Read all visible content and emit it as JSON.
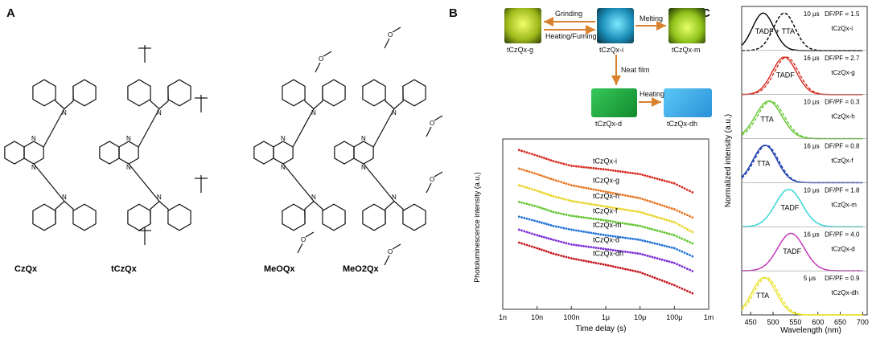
{
  "panels": {
    "a": "A",
    "b": "B",
    "c": "C"
  },
  "molecules": [
    {
      "name": "CzQx"
    },
    {
      "name": "tCzQx"
    },
    {
      "name": "MeOQx"
    },
    {
      "name": "MeO2Qx"
    }
  ],
  "scheme": {
    "samples": {
      "g": "tCzQx-g",
      "i": "tCzQx-i",
      "m": "tCzQx-m",
      "d": "tCzQx-d",
      "dh": "tCzQx-dh"
    },
    "arrows": {
      "grinding": "Grinding",
      "heating_fuming": "Heating/Fuming",
      "melting": "Melting",
      "neat_film": "Neat film",
      "heating": "Heating"
    },
    "colors": {
      "g": "#d8e83a",
      "i": "#2fb8d8",
      "m": "#c9ea3a",
      "d": "#1e9a3a",
      "dh": "#3aaee0",
      "arrow": "#d9822b"
    }
  },
  "chart_data": [
    {
      "type": "scatter",
      "ylabel": "Photoluminescence intensity (a.u.)",
      "xlabel": "Time delay (s)",
      "x_scale": "log",
      "x_ticks": [
        "1n",
        "10n",
        "100n",
        "1μ",
        "10μ",
        "100μ",
        "1m"
      ],
      "x_tick_values": [
        1e-09,
        1e-08,
        1e-07,
        1e-06,
        1e-05,
        0.0001,
        0.001
      ],
      "xlim": [
        1e-09,
        0.001
      ],
      "series": [
        {
          "name": "tCzQx-i",
          "color": "#d62a1e",
          "x": [
            3e-09,
            1e-08,
            3e-08,
            1e-07,
            1e-06,
            1e-05,
            0.0001,
            0.0004
          ],
          "y": [
            9.6,
            9.3,
            9.0,
            8.75,
            8.55,
            8.3,
            7.8,
            7.25
          ]
        },
        {
          "name": "tCzQx-g",
          "color": "#e8731e",
          "x": [
            3e-09,
            1e-08,
            3e-08,
            1e-07,
            1e-06,
            1e-05,
            0.0001,
            0.0004
          ],
          "y": [
            8.6,
            8.3,
            8.0,
            7.7,
            7.35,
            7.0,
            6.4,
            5.9
          ]
        },
        {
          "name": "tCzQx-h",
          "color": "#e8d21e",
          "x": [
            3e-09,
            1e-08,
            3e-08,
            1e-07,
            1e-06,
            1e-05,
            0.0001,
            0.0004
          ],
          "y": [
            7.7,
            7.4,
            7.1,
            6.85,
            6.55,
            6.25,
            5.7,
            5.1
          ]
        },
        {
          "name": "tCzQx-f",
          "color": "#5fc42a",
          "x": [
            3e-09,
            1e-08,
            3e-08,
            1e-07,
            1e-06,
            1e-05,
            0.0001,
            0.0004
          ],
          "y": [
            6.8,
            6.55,
            6.25,
            6.05,
            5.8,
            5.5,
            5.0,
            4.5
          ]
        },
        {
          "name": "tCzQx-m",
          "color": "#1e6fd6",
          "x": [
            3e-09,
            1e-08,
            3e-08,
            1e-07,
            1e-06,
            1e-05,
            0.0001,
            0.0004
          ],
          "y": [
            6.0,
            5.75,
            5.5,
            5.3,
            5.0,
            4.75,
            4.3,
            3.8
          ]
        },
        {
          "name": "tCzQx-d",
          "color": "#7a2ad6",
          "x": [
            3e-09,
            1e-08,
            3e-08,
            1e-07,
            1e-06,
            1e-05,
            0.0001,
            0.0004
          ],
          "y": [
            5.3,
            5.0,
            4.75,
            4.5,
            4.25,
            4.0,
            3.5,
            3.0
          ]
        },
        {
          "name": "tCzQx-dh",
          "color": "#c4161e",
          "x": [
            3e-09,
            1e-08,
            3e-08,
            1e-07,
            1e-06,
            1e-05,
            0.0001,
            0.0004
          ],
          "y": [
            4.6,
            4.3,
            4.0,
            3.75,
            3.4,
            3.0,
            2.3,
            1.8
          ]
        }
      ]
    },
    {
      "type": "line",
      "ylabel": "Normalized intensity (a.u.)",
      "xlabel": "Wavelength (nm)",
      "x_ticks": [
        450,
        500,
        550,
        600,
        650,
        700
      ],
      "xlim": [
        430,
        710
      ],
      "panels": [
        {
          "sample": "tCzQx-i",
          "time": "10 μs",
          "ratio": "DF/PF = 1.5",
          "mechanism": "TADF + TTA",
          "color": "#000000",
          "pf_peak": 478,
          "df_peak": 525,
          "width": 34
        },
        {
          "sample": "tCzQx-g",
          "time": "16 μs",
          "ratio": "DF/PF = 2.7",
          "mechanism": "TADF",
          "color": "#d62a1e",
          "pf_peak": 525,
          "df_peak": 530,
          "width": 38
        },
        {
          "sample": "tCzQx-h",
          "time": "10 μs",
          "ratio": "DF/PF = 0.3",
          "mechanism": "TTA",
          "color": "#5fc42a",
          "pf_peak": 490,
          "df_peak": 495,
          "width": 42
        },
        {
          "sample": "tCzQx-f",
          "time": "16 μs",
          "ratio": "DF/PF = 0.8",
          "mechanism": "TTA",
          "color": "#1e3fb0",
          "pf_peak": 482,
          "df_peak": 485,
          "width": 38
        },
        {
          "sample": "tCzQx-m",
          "time": "10 μs",
          "ratio": "DF/PF = 1.8",
          "mechanism": "TADF",
          "color": "#3ad6d6",
          "pf_peak": 535,
          "df_peak": 535,
          "width": 42
        },
        {
          "sample": "tCzQx-d",
          "time": "16 μs",
          "ratio": "DF/PF = 4.0",
          "mechanism": "TADF",
          "color": "#c43ab8",
          "pf_peak": 540,
          "df_peak": 540,
          "width": 42
        },
        {
          "sample": "tCzQx-dh",
          "time": "5 μs",
          "ratio": "DF/PF = 0.9",
          "mechanism": "TTA",
          "color": "#e8e01e",
          "pf_peak": 480,
          "df_peak": 485,
          "width": 38
        }
      ]
    }
  ]
}
